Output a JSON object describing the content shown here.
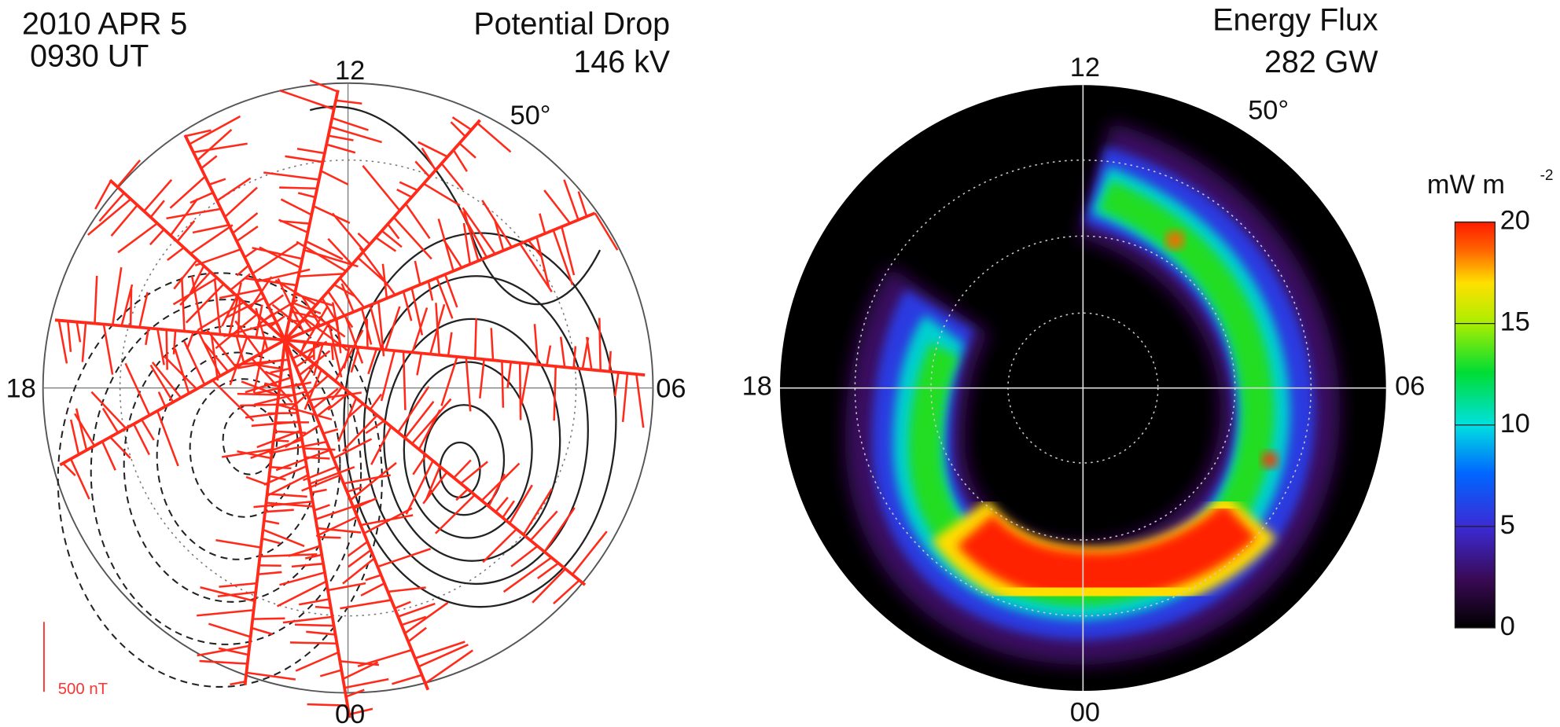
{
  "left_panel": {
    "date": "2010 APR 5",
    "time": "0930 UT",
    "title": "Potential Drop",
    "value": "146 kV",
    "labels": {
      "top": "12",
      "lat": "50°",
      "left": "18",
      "right": "06",
      "bottom": "00"
    },
    "scale": "500 nT"
  },
  "right_panel": {
    "title": "Energy Flux",
    "value": "282 GW",
    "labels": {
      "top": "12",
      "lat": "50°",
      "left": "18",
      "right": "06",
      "bottom": "00"
    },
    "colorbar": {
      "unit": "mW m",
      "unit_exponent": "-2",
      "range": [
        0,
        20
      ],
      "ticks": [
        0,
        5,
        10,
        15,
        20
      ]
    }
  }
}
